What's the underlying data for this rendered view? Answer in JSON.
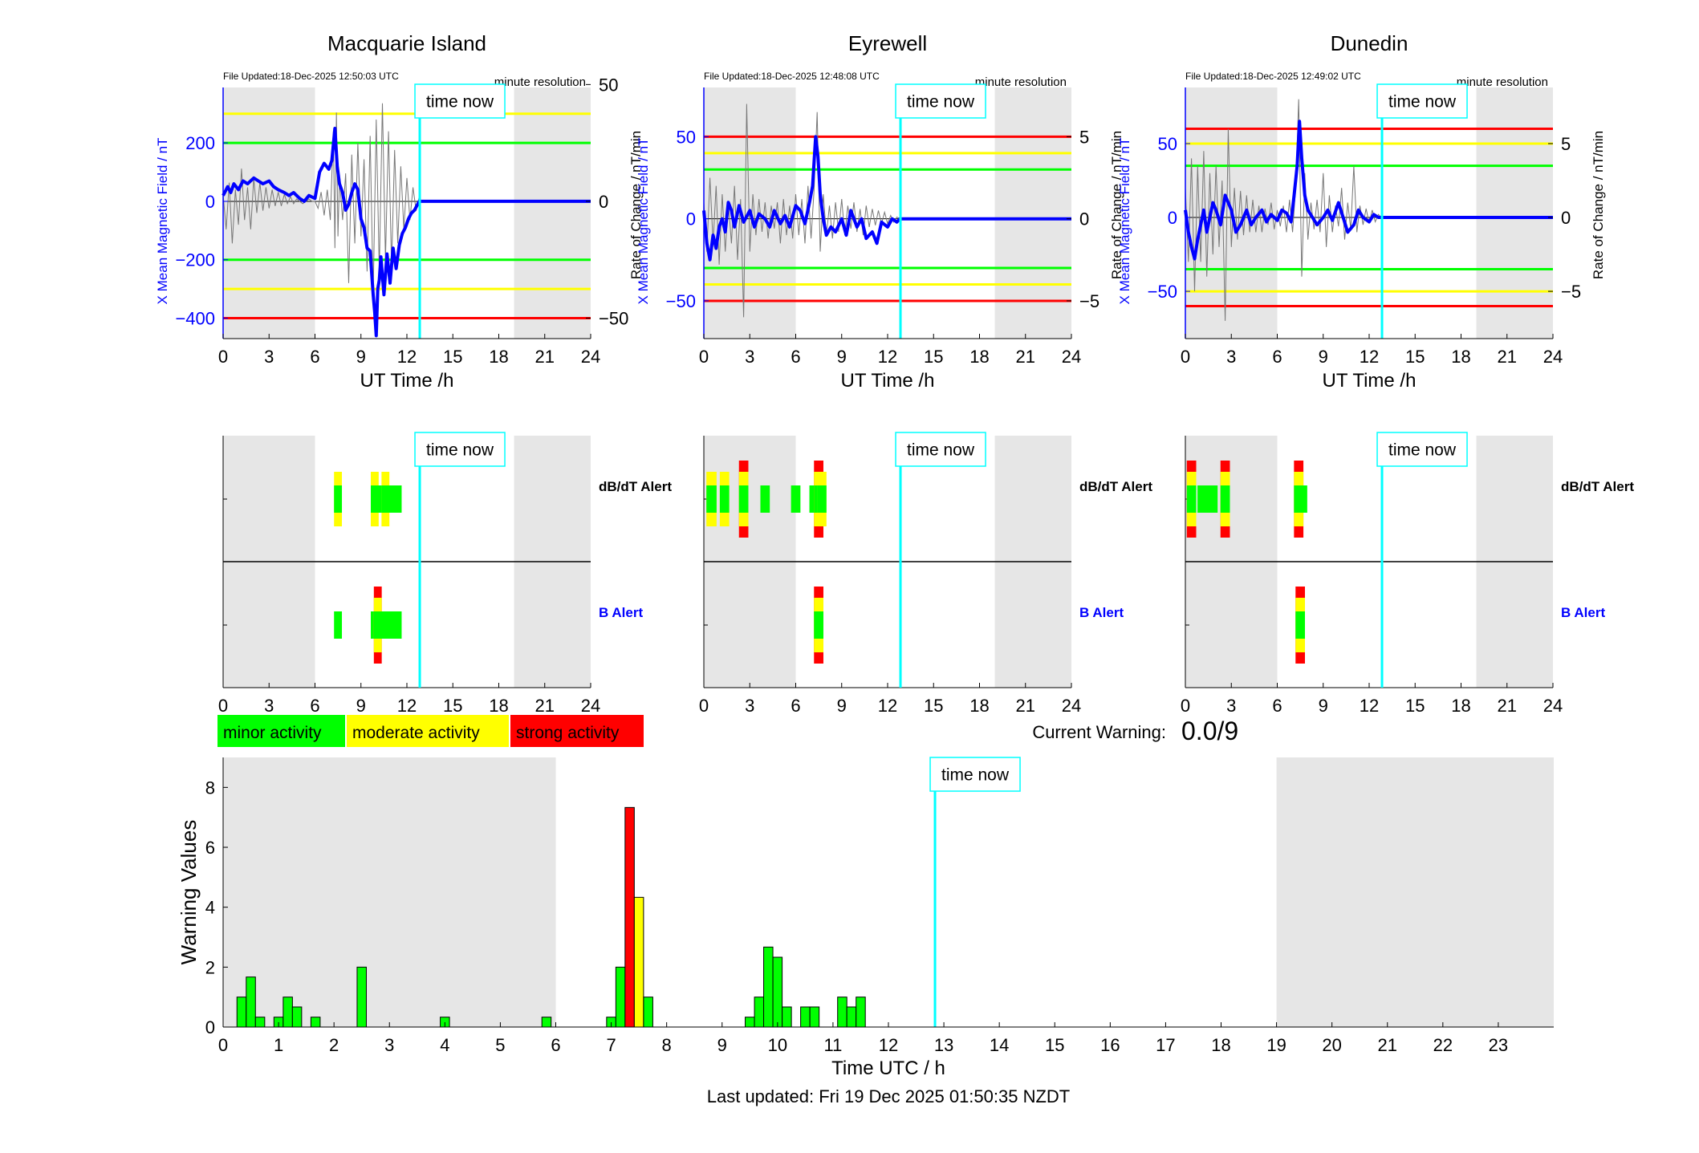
{
  "stations": [
    {
      "name": "Macquarie Island",
      "file_updated": "File Updated:18-Dec-2025 12:50:03 UTC",
      "resolution": "minute resolution",
      "time_now_label": "time now",
      "xlabel": "UT Time /h",
      "ylabel_left": "X Mean Magnetic Field / nT",
      "ylabel_right": "Rate of Change / nT/min",
      "left_ylim": [
        -470,
        390
      ],
      "left_ticks": [
        -400,
        -200,
        0,
        200
      ],
      "right_ylim": [
        -58.75,
        48.75
      ],
      "right_ticks": [
        -50,
        0,
        50
      ],
      "thresholds": [
        {
          "value": 300,
          "color": "#ffff00"
        },
        {
          "value": 200,
          "color": "#00ff00"
        },
        {
          "value": -200,
          "color": "#00ff00"
        },
        {
          "value": -300,
          "color": "#ffff00"
        },
        {
          "value": -400,
          "color": "#ff0000"
        }
      ],
      "field_x": [
        0,
        0.3,
        0.5,
        0.7,
        1,
        1.3,
        1.6,
        2,
        2.3,
        2.6,
        3,
        3.3,
        3.6,
        4,
        4.3,
        4.6,
        5,
        5.3,
        5.6,
        6,
        6.3,
        6.6,
        6.9,
        7.1,
        7.3,
        7.45,
        7.6,
        7.8,
        8.0,
        8.2,
        8.4,
        8.6,
        8.8,
        9.0,
        9.2,
        9.4,
        9.6,
        9.8,
        9.9,
        10.0,
        10.1,
        10.2,
        10.3,
        10.5,
        10.7,
        10.9,
        11.1,
        11.3,
        11.5,
        11.7,
        11.9,
        12.1,
        12.3,
        12.5,
        12.8,
        24
      ],
      "field_y": [
        20,
        50,
        30,
        60,
        40,
        70,
        60,
        80,
        70,
        60,
        70,
        50,
        40,
        30,
        20,
        30,
        10,
        0,
        20,
        10,
        100,
        130,
        110,
        140,
        250,
        120,
        60,
        30,
        -30,
        -10,
        30,
        60,
        40,
        -60,
        -90,
        -160,
        -170,
        -320,
        -380,
        -460,
        -300,
        -270,
        -190,
        -320,
        -180,
        -280,
        -160,
        -230,
        -150,
        -110,
        -90,
        -60,
        -40,
        -30,
        0,
        0
      ],
      "rate_x": [
        0,
        0.2,
        0.4,
        0.6,
        0.8,
        1.0,
        1.2,
        1.4,
        1.6,
        1.8,
        2.0,
        2.2,
        2.4,
        2.6,
        2.8,
        3.0,
        3.2,
        3.4,
        3.6,
        3.8,
        4.0,
        4.2,
        4.4,
        4.6,
        4.8,
        5.0,
        5.2,
        5.4,
        5.6,
        5.8,
        6.0,
        6.2,
        6.4,
        6.6,
        6.8,
        7.0,
        7.2,
        7.3,
        7.4,
        7.5,
        7.6,
        7.8,
        8.0,
        8.2,
        8.4,
        8.6,
        8.8,
        9.0,
        9.2,
        9.4,
        9.6,
        9.8,
        10.0,
        10.2,
        10.4,
        10.6,
        10.8,
        11.0,
        11.2,
        11.4,
        11.6,
        11.8,
        12.0,
        12.2,
        12.4,
        12.6,
        12.8
      ],
      "rate_y": [
        3,
        -12,
        8,
        -18,
        5,
        -10,
        14,
        -8,
        6,
        -12,
        10,
        -5,
        8,
        -4,
        6,
        -3,
        5,
        -2,
        4,
        -2,
        3,
        -1,
        2,
        -1,
        1,
        0,
        -1,
        0,
        1,
        0,
        0,
        -3,
        4,
        -6,
        5,
        -8,
        30,
        -20,
        38,
        -15,
        10,
        -8,
        12,
        -35,
        20,
        -18,
        25,
        -15,
        18,
        -30,
        28,
        -40,
        35,
        -30,
        42,
        -25,
        30,
        -28,
        22,
        -18,
        15,
        -12,
        10,
        -8,
        6,
        -4,
        2
      ],
      "dbdt_alert": [
        {
          "t": 7.5,
          "level": "moderate",
          "w": 0.2
        },
        {
          "t": 9.9,
          "level": "moderate",
          "w": 0.2
        },
        {
          "t": 10.1,
          "level": "minor",
          "w": 0.2
        },
        {
          "t": 10.6,
          "level": "moderate",
          "w": 0.2
        },
        {
          "t": 11.0,
          "level": "minor",
          "w": 0.2
        },
        {
          "t": 11.4,
          "level": "minor",
          "w": 0.2
        }
      ],
      "b_alert": [
        {
          "t": 7.5,
          "level": "minor",
          "w": 0.2
        },
        {
          "t": 9.9,
          "level": "minor",
          "w": 0.2
        },
        {
          "t": 10.1,
          "level": "strong",
          "w": 0.2
        },
        {
          "t": 10.6,
          "level": "minor",
          "w": 0.2
        },
        {
          "t": 11.0,
          "level": "minor",
          "w": 0.2
        },
        {
          "t": 11.4,
          "level": "minor",
          "w": 0.2
        }
      ]
    },
    {
      "name": "Eyrewell",
      "file_updated": "File Updated:18-Dec-2025 12:48:08 UTC",
      "resolution": "minute resolution",
      "time_now_label": "time now",
      "xlabel": "UT Time /h",
      "ylabel_left": "X Mean Magnetic Field / nT",
      "ylabel_right": "Rate of Change / nT/min",
      "left_ylim": [
        -73,
        80
      ],
      "left_ticks": [
        -50,
        0,
        50
      ],
      "right_ylim": [
        -7.3,
        8.0
      ],
      "right_ticks": [
        -5,
        0,
        5
      ],
      "thresholds": [
        {
          "value": 50,
          "color": "#ff0000"
        },
        {
          "value": 40,
          "color": "#ffff00"
        },
        {
          "value": 30,
          "color": "#00ff00"
        },
        {
          "value": -30,
          "color": "#00ff00"
        },
        {
          "value": -40,
          "color": "#ffff00"
        },
        {
          "value": -50,
          "color": "#ff0000"
        }
      ],
      "field_x": [
        0,
        0.2,
        0.4,
        0.6,
        0.8,
        1.0,
        1.2,
        1.4,
        1.6,
        1.8,
        2.0,
        2.3,
        2.6,
        3.0,
        3.3,
        3.6,
        4.0,
        4.3,
        4.6,
        5.0,
        5.3,
        5.6,
        6.0,
        6.3,
        6.6,
        6.9,
        7.1,
        7.3,
        7.45,
        7.6,
        7.8,
        8.0,
        8.3,
        8.6,
        9.0,
        9.3,
        9.6,
        10.0,
        10.3,
        10.6,
        11.0,
        11.3,
        11.6,
        12.0,
        12.3,
        12.6,
        12.8,
        24
      ],
      "field_y": [
        5,
        -15,
        -25,
        -10,
        -18,
        -5,
        0,
        -8,
        10,
        5,
        -5,
        8,
        -2,
        5,
        -5,
        3,
        0,
        -5,
        5,
        -3,
        2,
        -5,
        8,
        5,
        -3,
        10,
        20,
        50,
        38,
        15,
        0,
        -10,
        -5,
        -8,
        0,
        -10,
        5,
        -5,
        0,
        -12,
        -8,
        -15,
        -2,
        -5,
        0,
        -2,
        0,
        0
      ],
      "rate_x": [
        0,
        0.2,
        0.4,
        0.6,
        0.8,
        1.0,
        1.2,
        1.4,
        1.6,
        1.8,
        2.0,
        2.2,
        2.4,
        2.6,
        2.8,
        3.0,
        3.2,
        3.4,
        3.6,
        3.8,
        4.0,
        4.2,
        4.4,
        4.6,
        4.8,
        5.0,
        5.2,
        5.4,
        5.6,
        5.8,
        6.0,
        6.2,
        6.4,
        6.6,
        6.8,
        7.0,
        7.2,
        7.4,
        7.6,
        7.8,
        8.0,
        8.2,
        8.4,
        8.6,
        8.8,
        9.0,
        9.2,
        9.4,
        9.6,
        9.8,
        10.0,
        10.2,
        10.4,
        10.6,
        10.8,
        11.0,
        11.2,
        11.4,
        11.6,
        11.8,
        12.0,
        12.2,
        12.4,
        12.6,
        12.8
      ],
      "rate_y": [
        1,
        -2,
        2.5,
        -1.5,
        2,
        -2.8,
        1.5,
        -2,
        1,
        -1.5,
        2,
        -2.5,
        1.2,
        -6,
        7,
        -2,
        1.5,
        -1,
        1.2,
        -0.8,
        1,
        -1.2,
        0.8,
        -0.6,
        1,
        -1.5,
        1.2,
        -1,
        0.8,
        -1.2,
        1.5,
        -1,
        1.2,
        -1.5,
        2,
        -1.2,
        1.8,
        6.5,
        -2,
        1.5,
        -1,
        0.8,
        -1.2,
        1,
        -0.8,
        1.2,
        -1,
        0.8,
        -0.6,
        1,
        -0.8,
        0.6,
        -1,
        0.8,
        -0.5,
        0.6,
        -0.4,
        0.5,
        -0.3,
        0.4,
        -0.3,
        0.2,
        -0.2,
        0.1,
        0
      ],
      "dbdt_alert": [
        {
          "t": 0.5,
          "level": "moderate",
          "w": 0.35
        },
        {
          "t": 1.35,
          "level": "moderate",
          "w": 0.3
        },
        {
          "t": 2.6,
          "level": "strong",
          "w": 0.3
        },
        {
          "t": 4.0,
          "level": "minor",
          "w": 0.3
        },
        {
          "t": 6.0,
          "level": "minor",
          "w": 0.3
        },
        {
          "t": 7.2,
          "level": "minor",
          "w": 0.3
        },
        {
          "t": 7.5,
          "level": "strong",
          "w": 0.3
        },
        {
          "t": 7.7,
          "level": "moderate",
          "w": 0.3
        }
      ],
      "b_alert": [
        {
          "t": 7.5,
          "level": "strong",
          "w": 0.3
        }
      ]
    },
    {
      "name": "Dunedin",
      "file_updated": "File Updated:18-Dec-2025 12:49:02 UTC",
      "resolution": "minute resolution",
      "time_now_label": "time now",
      "xlabel": "UT Time /h",
      "ylabel_left": "X Mean Magnetic Field / nT",
      "ylabel_right": "Rate of Change / nT/min",
      "left_ylim": [
        -82,
        88
      ],
      "left_ticks": [
        -50,
        0,
        50
      ],
      "right_ylim": [
        -8.2,
        8.8
      ],
      "right_ticks": [
        -5,
        0,
        5
      ],
      "thresholds": [
        {
          "value": 60,
          "color": "#ff0000"
        },
        {
          "value": 50,
          "color": "#ffff00"
        },
        {
          "value": 35,
          "color": "#00ff00"
        },
        {
          "value": -35,
          "color": "#00ff00"
        },
        {
          "value": -50,
          "color": "#ffff00"
        },
        {
          "value": -60,
          "color": "#ff0000"
        }
      ],
      "field_x": [
        0,
        0.2,
        0.4,
        0.6,
        0.8,
        1.0,
        1.2,
        1.4,
        1.6,
        1.8,
        2.0,
        2.3,
        2.6,
        3.0,
        3.3,
        3.6,
        4.0,
        4.3,
        4.6,
        5.0,
        5.3,
        5.6,
        6.0,
        6.3,
        6.6,
        6.9,
        7.1,
        7.3,
        7.45,
        7.6,
        7.8,
        8.0,
        8.3,
        8.6,
        9.0,
        9.3,
        9.6,
        10.0,
        10.3,
        10.6,
        11.0,
        11.3,
        11.6,
        12.0,
        12.3,
        12.6,
        12.8,
        24
      ],
      "field_y": [
        5,
        -10,
        -20,
        -28,
        -15,
        -5,
        5,
        -10,
        0,
        10,
        5,
        -5,
        15,
        5,
        -10,
        -5,
        5,
        -5,
        0,
        5,
        -3,
        2,
        -2,
        5,
        3,
        -3,
        15,
        35,
        65,
        40,
        15,
        5,
        0,
        -5,
        0,
        5,
        -2,
        10,
        0,
        -10,
        -5,
        5,
        0,
        -3,
        2,
        0,
        0,
        0
      ],
      "rate_x": [
        0,
        0.2,
        0.4,
        0.6,
        0.8,
        1.0,
        1.2,
        1.4,
        1.6,
        1.8,
        2.0,
        2.2,
        2.4,
        2.6,
        2.8,
        3.0,
        3.2,
        3.4,
        3.6,
        3.8,
        4.0,
        4.2,
        4.4,
        4.6,
        4.8,
        5.0,
        5.2,
        5.4,
        5.6,
        5.8,
        6.0,
        6.2,
        6.4,
        6.6,
        6.8,
        7.0,
        7.2,
        7.4,
        7.6,
        7.8,
        8.0,
        8.2,
        8.4,
        8.6,
        8.8,
        9.0,
        9.2,
        9.4,
        9.6,
        9.8,
        10.0,
        10.2,
        10.4,
        10.6,
        10.8,
        11.0,
        11.2,
        11.4,
        11.6,
        11.8,
        12.0,
        12.2,
        12.4,
        12.6,
        12.8
      ],
      "rate_y": [
        2,
        -3,
        4,
        -5,
        3.5,
        -3,
        4.5,
        -4,
        3,
        -2.5,
        3.5,
        -2,
        2.5,
        -7,
        6,
        -2,
        2,
        -1.5,
        1.8,
        -1.2,
        1.5,
        -1,
        1.2,
        -1,
        0.8,
        -1,
        0.6,
        -0.5,
        1,
        -0.8,
        0.5,
        -0.6,
        0.8,
        -1,
        1.2,
        -1,
        2,
        8,
        -4,
        3,
        -1.5,
        1,
        -0.8,
        1.2,
        -1,
        3,
        -2,
        1.5,
        -1,
        0.8,
        -0.6,
        2,
        -1.5,
        1,
        -0.8,
        3.5,
        -1,
        0.8,
        -0.5,
        0.6,
        -0.4,
        0.5,
        -0.3,
        0.2,
        0
      ],
      "dbdt_alert": [
        {
          "t": 0.4,
          "level": "strong",
          "w": 0.3
        },
        {
          "t": 1.2,
          "level": "minor",
          "w": 0.5
        },
        {
          "t": 1.8,
          "level": "minor",
          "w": 0.3
        },
        {
          "t": 2.6,
          "level": "strong",
          "w": 0.3
        },
        {
          "t": 7.4,
          "level": "strong",
          "w": 0.3
        },
        {
          "t": 7.65,
          "level": "minor",
          "w": 0.3
        }
      ],
      "b_alert": [
        {
          "t": 7.5,
          "level": "strong",
          "w": 0.3
        }
      ]
    }
  ],
  "alert_labels": {
    "dbdt": "dB/dT Alert",
    "b": "B Alert"
  },
  "night_shading": [
    [
      0,
      6
    ],
    [
      19,
      24
    ]
  ],
  "time_now_h": 12.84,
  "x_ticks_3h": [
    0,
    3,
    6,
    9,
    12,
    15,
    18,
    21,
    24
  ],
  "legend": {
    "minor": "minor activity",
    "moderate": "moderate activity",
    "strong": "strong activity"
  },
  "colors": {
    "minor": "#00ff00",
    "moderate": "#ffff00",
    "strong": "#ff0000",
    "time_now": "#00ffff",
    "field": "#0000ff",
    "shading": "#e6e6e6"
  },
  "current_warning": {
    "label": "Current Warning:",
    "value": "0.0/9"
  },
  "chart_data": {
    "type": "bar",
    "xlabel": "Time UTC / h",
    "ylabel": "Warning Values",
    "xlim": [
      0,
      24
    ],
    "ylim": [
      0,
      9
    ],
    "x_ticks": [
      0,
      1,
      2,
      3,
      4,
      5,
      6,
      7,
      8,
      9,
      10,
      11,
      12,
      13,
      14,
      15,
      16,
      17,
      18,
      19,
      20,
      21,
      22,
      23
    ],
    "y_ticks": [
      0,
      2,
      4,
      6,
      8
    ],
    "time_now_label": "time now",
    "shading": [
      [
        0,
        6
      ],
      [
        19,
        24
      ]
    ],
    "bars": [
      {
        "t": 0.333,
        "v": 1.0,
        "level": "minor"
      },
      {
        "t": 0.5,
        "v": 1.67,
        "level": "minor"
      },
      {
        "t": 0.667,
        "v": 0.33,
        "level": "minor"
      },
      {
        "t": 1.0,
        "v": 0.33,
        "level": "minor"
      },
      {
        "t": 1.167,
        "v": 1.0,
        "level": "minor"
      },
      {
        "t": 1.333,
        "v": 0.67,
        "level": "minor"
      },
      {
        "t": 1.667,
        "v": 0.33,
        "level": "minor"
      },
      {
        "t": 2.5,
        "v": 2.0,
        "level": "minor"
      },
      {
        "t": 4.0,
        "v": 0.33,
        "level": "minor"
      },
      {
        "t": 5.833,
        "v": 0.33,
        "level": "minor"
      },
      {
        "t": 7.0,
        "v": 0.33,
        "level": "minor"
      },
      {
        "t": 7.167,
        "v": 2.0,
        "level": "minor"
      },
      {
        "t": 7.333,
        "v": 7.33,
        "level": "strong"
      },
      {
        "t": 7.5,
        "v": 4.33,
        "level": "moderate"
      },
      {
        "t": 7.667,
        "v": 1.0,
        "level": "minor"
      },
      {
        "t": 9.5,
        "v": 0.33,
        "level": "minor"
      },
      {
        "t": 9.667,
        "v": 1.0,
        "level": "minor"
      },
      {
        "t": 9.833,
        "v": 2.67,
        "level": "minor"
      },
      {
        "t": 10.0,
        "v": 2.33,
        "level": "minor"
      },
      {
        "t": 10.167,
        "v": 0.67,
        "level": "minor"
      },
      {
        "t": 10.5,
        "v": 0.67,
        "level": "minor"
      },
      {
        "t": 10.667,
        "v": 0.67,
        "level": "minor"
      },
      {
        "t": 11.167,
        "v": 1.0,
        "level": "minor"
      },
      {
        "t": 11.333,
        "v": 0.67,
        "level": "minor"
      },
      {
        "t": 11.5,
        "v": 1.0,
        "level": "minor"
      }
    ]
  },
  "footer": "Last updated: Fri 19 Dec 2025 01:50:35 NZDT"
}
